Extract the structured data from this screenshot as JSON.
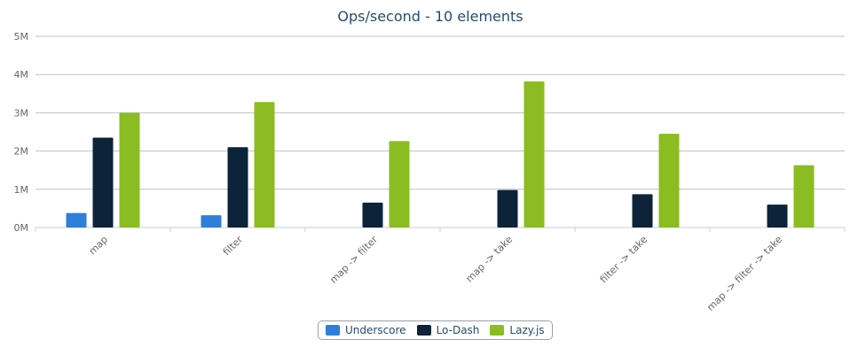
{
  "chart_data": {
    "type": "bar",
    "title": "Ops/second - 10 elements",
    "xlabel": "",
    "ylabel": "",
    "categories": [
      "map",
      "filter",
      "map -> filter",
      "map -> take",
      "filter -> take",
      "map -> filter -> take"
    ],
    "series": [
      {
        "name": "Underscore",
        "color": "#2f7ed8",
        "values": [
          0.38,
          0.32,
          0,
          0,
          0,
          0
        ]
      },
      {
        "name": "Lo-Dash",
        "color": "#0d233a",
        "values": [
          2.35,
          2.1,
          0.65,
          0.98,
          0.87,
          0.6
        ]
      },
      {
        "name": "Lazy.js",
        "color": "#8bbc21",
        "values": [
          3.0,
          3.28,
          2.26,
          3.82,
          2.45,
          1.63
        ]
      }
    ],
    "y_ticks": [
      "0M",
      "1M",
      "2M",
      "3M",
      "4M",
      "5M"
    ],
    "ylim": [
      0,
      5
    ],
    "grid": true,
    "legend_position": "bottom-center"
  }
}
